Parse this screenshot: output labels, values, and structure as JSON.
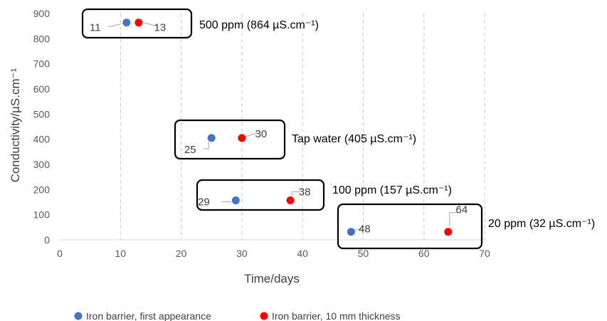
{
  "chart_data": {
    "type": "scatter",
    "xlabel": "Time/days",
    "ylabel": "Conductivity/µS.cm⁻¹",
    "xlim": [
      0,
      70
    ],
    "ylim": [
      0,
      900
    ],
    "xticks": [
      0,
      10,
      20,
      30,
      40,
      50,
      60,
      70
    ],
    "yticks": [
      0,
      100,
      200,
      300,
      400,
      500,
      600,
      700,
      800,
      900
    ],
    "grid": "vertical dashed",
    "legend_position": "bottom",
    "series": [
      {
        "name": "Iron barrier, first appearance",
        "color": "#4472C4",
        "points": [
          {
            "x": 11,
            "y": 864,
            "label": "11"
          },
          {
            "x": 25,
            "y": 405,
            "label": "25"
          },
          {
            "x": 29,
            "y": 157,
            "label": "29"
          },
          {
            "x": 48,
            "y": 32,
            "label": "48"
          }
        ]
      },
      {
        "name": "Iron barrier, 10 mm thickness",
        "color": "#FF0000",
        "points": [
          {
            "x": 13,
            "y": 864,
            "label": "13"
          },
          {
            "x": 30,
            "y": 405,
            "label": "30"
          },
          {
            "x": 38,
            "y": 157,
            "label": "38"
          },
          {
            "x": 64,
            "y": 32,
            "label": "64"
          }
        ]
      }
    ],
    "annotations": [
      "500 ppm (864 µS.cm⁻¹)",
      "Tap water (405 µS.cm⁻¹)",
      "100 ppm (157 µS.cm⁻¹)",
      "20 ppm (32 µS.cm⁻¹)"
    ]
  }
}
